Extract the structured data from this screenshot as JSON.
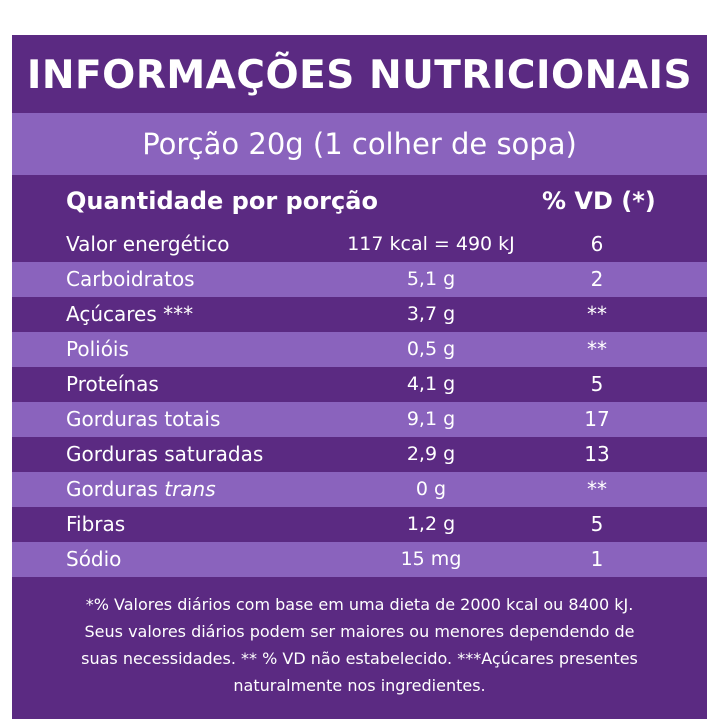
{
  "title": "INFORMAÇÕES NUTRICIONAIS",
  "portion": "Porção 20g (1 colher de sopa)",
  "header": {
    "quantity": "Quantidade por porção",
    "vd": "% VD (*)"
  },
  "rows": [
    {
      "name": "Valor energético",
      "amount": "117 kcal = 490 kJ",
      "vd": "6"
    },
    {
      "name": "Carboidratos",
      "amount": "5,1 g",
      "vd": "2"
    },
    {
      "name": "Açúcares ***",
      "amount": "3,7 g",
      "vd": "**"
    },
    {
      "name": "Polióis",
      "amount": "0,5 g",
      "vd": "**"
    },
    {
      "name": "Proteínas",
      "amount": "4,1 g",
      "vd": "5"
    },
    {
      "name": "Gorduras totais",
      "amount": "9,1 g",
      "vd": "17"
    },
    {
      "name": "Gorduras saturadas",
      "amount": "2,9 g",
      "vd": "13"
    },
    {
      "name_prefix": "Gorduras ",
      "name_italic": "trans",
      "amount": "0 g",
      "vd": "**"
    },
    {
      "name": "Fibras",
      "amount": "1,2 g",
      "vd": "5"
    },
    {
      "name": "Sódio",
      "amount": "15 mg",
      "vd": "1"
    }
  ],
  "footer": {
    "line1": "*% Valores diários com base em uma dieta de 2000 kcal ou 8400 kJ.",
    "line2": "Seus valores diários podem ser maiores ou menores dependendo de",
    "line3": "suas necessidades. ** % VD não estabelecido. ***Açúcares presentes",
    "line4": "naturalmente nos ingredientes."
  },
  "colors": {
    "dark_purple": "#5b2a82",
    "light_purple": "#8a63bd",
    "text": "#ffffff"
  }
}
